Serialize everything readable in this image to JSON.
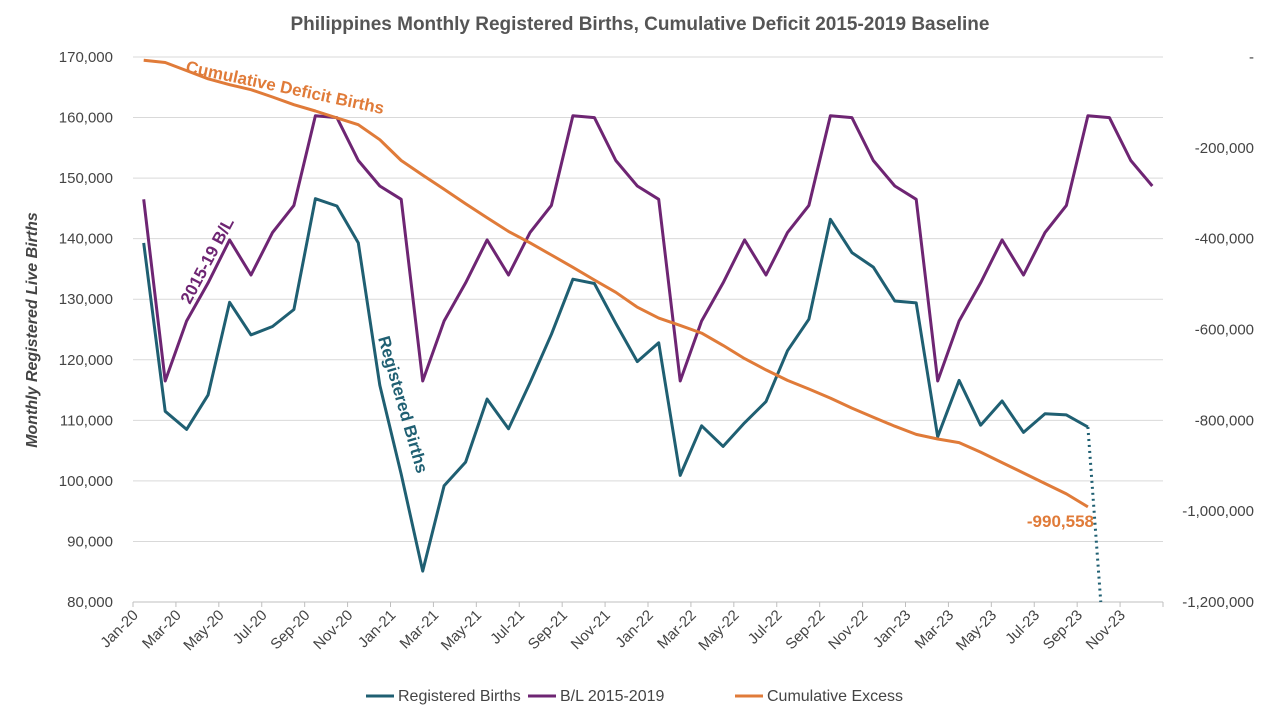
{
  "chart_data": {
    "type": "line",
    "title": "Philippines Monthly Registered Births, Cumulative Deficit 2015-2019 Baseline",
    "ylabel": "Monthly Registered Live Births",
    "ylim": [
      80000,
      170000
    ],
    "y_ticks": [
      "80,000",
      "90,000",
      "100,000",
      "110,000",
      "120,000",
      "130,000",
      "140,000",
      "150,000",
      "160,000",
      "170,000"
    ],
    "y2lim": [
      -1200000,
      0
    ],
    "y2_ticks": [
      "-1,200,000",
      "-1,000,000",
      "-800,000",
      "-600,000",
      "-400,000",
      "-200,000",
      "-"
    ],
    "categories": [
      "Jan-20",
      "Feb-20",
      "Mar-20",
      "Apr-20",
      "May-20",
      "Jun-20",
      "Jul-20",
      "Aug-20",
      "Sep-20",
      "Oct-20",
      "Nov-20",
      "Dec-20",
      "Jan-21",
      "Feb-21",
      "Mar-21",
      "Apr-21",
      "May-21",
      "Jun-21",
      "Jul-21",
      "Aug-21",
      "Sep-21",
      "Oct-21",
      "Nov-21",
      "Dec-21",
      "Jan-22",
      "Feb-22",
      "Mar-22",
      "Apr-22",
      "May-22",
      "Jun-22",
      "Jul-22",
      "Aug-22",
      "Sep-22",
      "Oct-22",
      "Nov-22",
      "Dec-22",
      "Jan-23",
      "Feb-23",
      "Mar-23",
      "Apr-23",
      "May-23",
      "Jun-23",
      "Jul-23",
      "Aug-23",
      "Sep-23",
      "Oct-23",
      "Nov-23",
      "Dec-23"
    ],
    "x_tick_labels": [
      "Jan-20",
      "Mar-20",
      "May-20",
      "Jul-20",
      "Sep-20",
      "Nov-20",
      "Jan-21",
      "Mar-21",
      "May-21",
      "Jul-21",
      "Sep-21",
      "Nov-21",
      "Jan-22",
      "Mar-22",
      "May-22",
      "Jul-22",
      "Sep-22",
      "Nov-22",
      "Jan-23",
      "Mar-23",
      "May-23",
      "Jul-23",
      "Sep-23",
      "Nov-23"
    ],
    "series": [
      {
        "name": "Registered Births",
        "axis": "left",
        "color": "#1f5f72",
        "values": [
          139300,
          111500,
          108500,
          114200,
          129500,
          124100,
          125500,
          128300,
          146600,
          145400,
          139300,
          115800,
          101100,
          85100,
          99200,
          103100,
          113500,
          108600,
          116200,
          124200,
          133300,
          132600,
          126000,
          119700,
          122800,
          100900,
          109100,
          105700,
          109600,
          113100,
          121500,
          126700,
          143200,
          137700,
          135300,
          129700,
          129400,
          107300,
          116600,
          109200,
          113200,
          108000,
          111100,
          110900,
          108900,
          null,
          null,
          null
        ],
        "projection": {
          "from_index": 44,
          "values": [
            108900,
            80000
          ],
          "style": "dotted"
        }
      },
      {
        "name": "B/L 2015-2019",
        "axis": "left",
        "color": "#6e2573",
        "values": [
          146500,
          116500,
          126400,
          132700,
          139800,
          134000,
          141000,
          145500,
          160300,
          160000,
          152900,
          148700,
          146500,
          116500,
          126400,
          132700,
          139800,
          134000,
          141000,
          145500,
          160300,
          160000,
          152900,
          148700,
          146500,
          116500,
          126400,
          132700,
          139800,
          134000,
          141000,
          145500,
          160300,
          160000,
          152900,
          148700,
          146500,
          116500,
          126400,
          132700,
          139800,
          134000,
          141000,
          145500,
          160300,
          160000,
          152900,
          148700
        ]
      },
      {
        "name": "Cumulative Excess",
        "axis": "right",
        "color": "#e07b39",
        "values": [
          -7000,
          -12000,
          -30000,
          -48000,
          -61000,
          -72000,
          -88000,
          -105000,
          -119000,
          -134000,
          -149000,
          -182000,
          -228000,
          -260000,
          -291000,
          -323000,
          -354000,
          -384000,
          -409000,
          -436000,
          -463000,
          -491000,
          -518000,
          -551000,
          -575000,
          -591000,
          -608000,
          -635000,
          -664000,
          -689000,
          -712000,
          -731000,
          -751000,
          -773000,
          -793000,
          -813000,
          -831000,
          -841000,
          -849000,
          -870000,
          -893000,
          -916000,
          -939000,
          -962000,
          -990558,
          null,
          null,
          null
        ]
      }
    ],
    "annotations": {
      "cumulative": "Cumulative Deficit Births",
      "baseline": "2015-19 B/L",
      "registered": "Registered Births",
      "final_value": "-990,558"
    },
    "legend_position": "bottom",
    "grid": true
  }
}
